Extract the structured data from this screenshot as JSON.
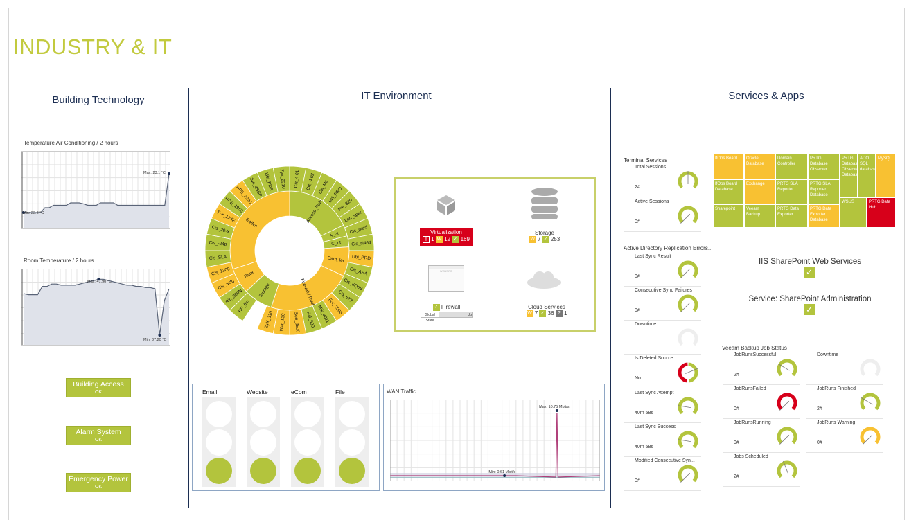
{
  "page": {
    "title": "INDUSTRY & IT"
  },
  "colors": {
    "green": "#b3c43d",
    "orange": "#f8c132",
    "red": "#d7001a",
    "navy": "#1c2e52",
    "gray": "#e8e8e8"
  },
  "building": {
    "title": "Building Technology",
    "chart1": {
      "title": "Temperature Air Conditioning / 2 hours",
      "max_label": "Max: 23.1 °C",
      "min_label": "Min: 22.3 °C",
      "values": [
        22.3,
        22.3,
        22.3,
        22.3,
        22.3,
        22.4,
        22.4,
        22.45,
        22.45,
        22.45,
        22.45,
        22.5,
        22.5,
        22.5,
        22.48,
        22.45,
        22.45,
        22.45,
        22.5,
        22.5,
        22.5,
        22.5,
        22.45,
        22.45,
        22.45,
        22.45,
        22.45,
        22.45,
        22.45,
        22.45,
        22.45,
        22.45,
        22.45,
        22.45,
        23.1
      ],
      "ylim": [
        22,
        23.5
      ]
    },
    "chart2": {
      "title": "Room Temperature / 2 hours",
      "max_label": "Max: 41.90 °C",
      "min_label": "Min: 37.20 °C",
      "values": [
        40.7,
        40.6,
        40.6,
        40.6,
        41.3,
        41.3,
        41.5,
        41.5,
        41.4,
        41.4,
        41.4,
        41.4,
        41.5,
        41.6,
        41.7,
        41.8,
        41.9,
        41.9,
        41.8,
        41.7,
        41.6,
        41.5,
        41.4,
        41.4,
        41.3,
        41.3,
        41.2,
        41.2,
        41.1,
        37.2,
        40.1,
        41.1
      ],
      "ylim": [
        36.5,
        42.5
      ]
    },
    "buttons": [
      {
        "label": "Building Access",
        "status": "OK"
      },
      {
        "label": "Alarm System",
        "status": "OK"
      },
      {
        "label": "Emergency Power",
        "status": "OK"
      }
    ]
  },
  "it": {
    "title": "IT Environment",
    "sunburst": {
      "inner": [
        {
          "label": "Access_Point",
          "c": "green",
          "w": 18
        },
        {
          "label": "A_nt",
          "c": "green",
          "w": 3
        },
        {
          "label": "C_nt",
          "c": "green",
          "w": 3
        },
        {
          "label": "Cam_ler",
          "c": "orange",
          "w": 8
        },
        {
          "label": "Firewall / Router",
          "c": "orange",
          "w": 23
        },
        {
          "label": "Storage",
          "c": "green",
          "w": 8
        },
        {
          "label": "Rack",
          "c": "orange",
          "w": 7
        },
        {
          "label": "Switch",
          "c": "orange",
          "w": 30
        }
      ],
      "outer": [
        {
          "label": "Cis_4 01",
          "c": "green"
        },
        {
          "label": "Cis_4 02",
          "c": "green"
        },
        {
          "label": "Cis_Mit",
          "c": "green"
        },
        {
          "label": "Ubi_PRO",
          "c": "green"
        },
        {
          "label": "Fre_320",
          "c": "green"
        },
        {
          "label": "Lan_sper",
          "c": "green"
        },
        {
          "label": "Cis_oard",
          "c": "green"
        },
        {
          "label": "Cis_N464",
          "c": "green"
        },
        {
          "label": "Ubi_PRD",
          "c": "orange"
        },
        {
          "label": "Cis_ASA",
          "c": "green"
        },
        {
          "label": "Cis_6QoS",
          "c": "green"
        },
        {
          "label": "Cis_677",
          "c": "green"
        },
        {
          "label": "For_2006",
          "c": "orange"
        },
        {
          "label": "Mik_3011",
          "c": "green"
        },
        {
          "label": "Pal_500",
          "c": "green"
        },
        {
          "label": "Son_3500",
          "c": "orange"
        },
        {
          "label": "Wat_T30",
          "c": "orange"
        },
        {
          "label": "ZyX_110",
          "c": "orange"
        },
        {
          "label": "",
          "c": "none"
        },
        {
          "label": "HP_flm",
          "c": "green"
        },
        {
          "label": "Ric_300N",
          "c": "green"
        },
        {
          "label": "Cis_acfg",
          "c": "orange"
        },
        {
          "label": "Cis_1300",
          "c": "orange"
        },
        {
          "label": "Cis_SLA",
          "c": "green"
        },
        {
          "label": "Cis_-24p",
          "c": "green"
        },
        {
          "label": "Cis_20-X",
          "c": "green"
        },
        {
          "label": "For_124F",
          "c": "orange"
        },
        {
          "label": "HPE_1950",
          "c": "green"
        },
        {
          "label": "HPE_2930",
          "c": "orange"
        },
        {
          "label": "Jun_4SSP",
          "c": "green"
        },
        {
          "label": "Ubi_PDE",
          "c": "green"
        },
        {
          "label": "Zyx_2210",
          "c": "green"
        }
      ]
    },
    "groups": {
      "virtualization": {
        "label": "Virtualization",
        "error": "1",
        "warning": "12",
        "ok": "169"
      },
      "storage": {
        "label": "Storage",
        "warning": "7",
        "ok": "253"
      },
      "firewall": {
        "label": "Firewall",
        "state_label": "Global State",
        "state_value": "Up",
        "website_label": "WEBSITE"
      },
      "cloud": {
        "label": "Cloud Services",
        "warning": "7",
        "ok": "36",
        "unknown": "1"
      }
    },
    "lights": [
      {
        "label": "Email"
      },
      {
        "label": "Website"
      },
      {
        "label": "eCom"
      },
      {
        "label": "File"
      }
    ],
    "wan": {
      "title": "WAN Traffic",
      "max_label": "Max: 10.75 Mbit/s",
      "min_label": "Min: 0.61 Mbit/s"
    }
  },
  "services": {
    "title": "Services & Apps",
    "treemap": [
      "IfOps Board",
      "Oracle Database",
      "Domain Controller",
      "PRTG Database Observer",
      "PRTG Database Observer Database",
      "ADO SQL database",
      "MySQL",
      "IfOps Board Database",
      "Exchange",
      "PRTG SLA Reporter",
      "PRTG SLA Reporter Database",
      "Sharepoint",
      "Veeam Backup",
      "PRTG Data Exporter",
      "PRTG Data Exporter Database",
      "WSUS",
      "PRTG Data Hub"
    ],
    "iis": "IIS SharePoint Web Services",
    "sp_admin": "Service: SharePoint Administration",
    "terminal": {
      "title": "Terminal Services"
    },
    "ad": {
      "title": "Active Directory Replication Errors.."
    },
    "veeam": {
      "title": "Veeam Backup Job Status"
    },
    "gauges": [
      {
        "label": "Total Sessions",
        "value": "2#",
        "color": "green",
        "needle": 0.5
      },
      {
        "label": "Active Sessions",
        "value": "0#",
        "color": "green",
        "needle": 0
      },
      {
        "label": "Last Sync Result",
        "value": "0#",
        "color": "green",
        "needle": 0
      },
      {
        "label": "Consecutive Sync Failures",
        "value": "0#",
        "color": "green",
        "needle": 0
      },
      {
        "label": "Downtime",
        "value": "",
        "color": "gray",
        "needle": null
      },
      {
        "label": "Is Deleted Source",
        "value": "No",
        "color": "split",
        "needle": 0.75
      },
      {
        "label": "Last Sync Attempt",
        "value": "40m 58s",
        "color": "green",
        "needle": 0.2
      },
      {
        "label": "Last Sync Success",
        "value": "40m 58s",
        "color": "green",
        "needle": 0.2
      },
      {
        "label": "Modified Consecutive Syn...",
        "value": "0#",
        "color": "green",
        "needle": 0
      },
      {
        "label": "JobRunsSuccessful",
        "value": "2#",
        "color": "green",
        "needle": 0.28
      },
      {
        "label": "Downtime",
        "value": "",
        "color": "gray",
        "needle": null
      },
      {
        "label": "JobRunsFailed",
        "value": "0#",
        "color": "red",
        "needle": 0
      },
      {
        "label": "JobRuns Finished",
        "value": "2#",
        "color": "green",
        "needle": 0.28
      },
      {
        "label": "JobRunsRunning",
        "value": "0#",
        "color": "green",
        "needle": 0
      },
      {
        "label": "JobRuns Warning",
        "value": "0#",
        "color": "orange",
        "needle": 0
      },
      {
        "label": "Jobs Scheduled",
        "value": "2#",
        "color": "green",
        "needle": 0.42
      }
    ]
  }
}
